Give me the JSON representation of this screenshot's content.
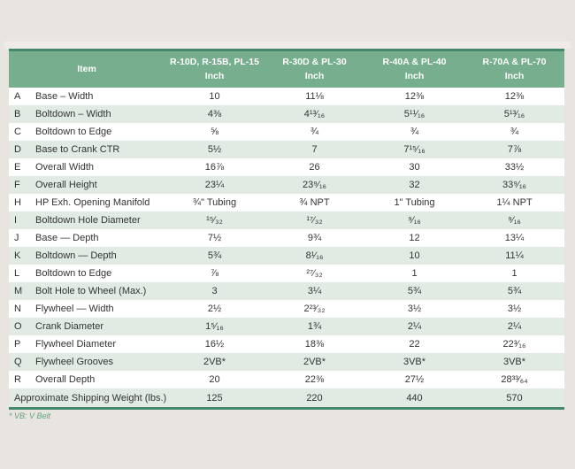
{
  "page": {
    "colors": {
      "page_bg": "#e8e5e0",
      "header_bg": "#76ae8e",
      "header_text": "#ffffff",
      "border_dark": "#43886a",
      "stripe_green": "#e1ebe4",
      "stripe_white": "#ffffff",
      "text": "#333333",
      "footnote": "#61a183"
    }
  },
  "table": {
    "header": {
      "item_label": "Item",
      "columns": [
        {
          "model": "R-10D, R-15B, PL-15",
          "unit": "Inch"
        },
        {
          "model": "R-30D & PL-30",
          "unit": "Inch"
        },
        {
          "model": "R-40A & PL-40",
          "unit": "Inch"
        },
        {
          "model": "R-70A & PL-70",
          "unit": "Inch"
        }
      ]
    },
    "rows": [
      {
        "letter": "A",
        "item": "Base – Width",
        "values": [
          "10",
          "11⅛",
          "12⅜",
          "12⅜"
        ]
      },
      {
        "letter": "B",
        "item": "Boltdown – Width",
        "values": [
          "4⅜",
          "4¹³⁄₁₆",
          "5¹¹⁄₁₆",
          "5¹³⁄₁₆"
        ]
      },
      {
        "letter": "C",
        "item": "Boltdown to Edge",
        "values": [
          "⅝",
          "¾",
          "¾",
          "¾"
        ]
      },
      {
        "letter": "D",
        "item": "Base to Crank CTR",
        "values": [
          "5½",
          "7",
          "7¹⁵⁄₁₆",
          "7⅞"
        ]
      },
      {
        "letter": "E",
        "item": "Overall Width",
        "values": [
          "16⅞",
          "26",
          "30",
          "33½"
        ]
      },
      {
        "letter": "F",
        "item": "Overall Height",
        "values": [
          "23¼",
          "23⁹⁄₁₆",
          "32",
          "33⁹⁄₁₆"
        ]
      },
      {
        "letter": "H",
        "item": "HP Exh. Opening Manifold",
        "values": [
          "¾\" Tubing",
          "¾ NPT",
          "1\" Tubing",
          "1¼ NPT"
        ]
      },
      {
        "letter": "I",
        "item": "Boltdown Hole Diameter",
        "values": [
          "¹⁵⁄₃₂",
          "¹⁷⁄₃₂",
          "⁹⁄₁₆",
          "⁹⁄₁₆"
        ]
      },
      {
        "letter": "J",
        "item": "Base — Depth",
        "values": [
          "7½",
          "9¾",
          "12",
          "13¼"
        ]
      },
      {
        "letter": "K",
        "item": "Boltdown — Depth",
        "values": [
          "5¾",
          "8¹⁄₁₆",
          "10",
          "11¼"
        ]
      },
      {
        "letter": "L",
        "item": "Boltdown to Edge",
        "values": [
          "⅞",
          "²⁷⁄₃₂",
          "1",
          "1"
        ]
      },
      {
        "letter": "M",
        "item": "Bolt Hole to Wheel (Max.)",
        "values": [
          "3",
          "3¼",
          "5¾",
          "5¾"
        ]
      },
      {
        "letter": "N",
        "item": "Flywheel — Width",
        "values": [
          "2½",
          "2²³⁄₃₂",
          "3½",
          "3½"
        ]
      },
      {
        "letter": "O",
        "item": "Crank Diameter",
        "values": [
          "1⁵⁄₁₆",
          "1¾",
          "2¼",
          "2¼"
        ]
      },
      {
        "letter": "P",
        "item": "Flywheel Diameter",
        "values": [
          "16½",
          "18⅜",
          "22",
          "22³⁄₁₆"
        ]
      },
      {
        "letter": "Q",
        "item": "Flywheel Grooves",
        "values": [
          "2VB*",
          "2VB*",
          "3VB*",
          "3VB*"
        ]
      },
      {
        "letter": "R",
        "item": "Overall Depth",
        "values": [
          "20",
          "22⅜",
          "27½",
          "28³³⁄₆₄"
        ]
      }
    ],
    "summary_row": {
      "label": "Approximate Shipping Weight (lbs.)",
      "values": [
        "125",
        "220",
        "440",
        "570"
      ]
    },
    "footnote": "* VB: V Belt"
  }
}
